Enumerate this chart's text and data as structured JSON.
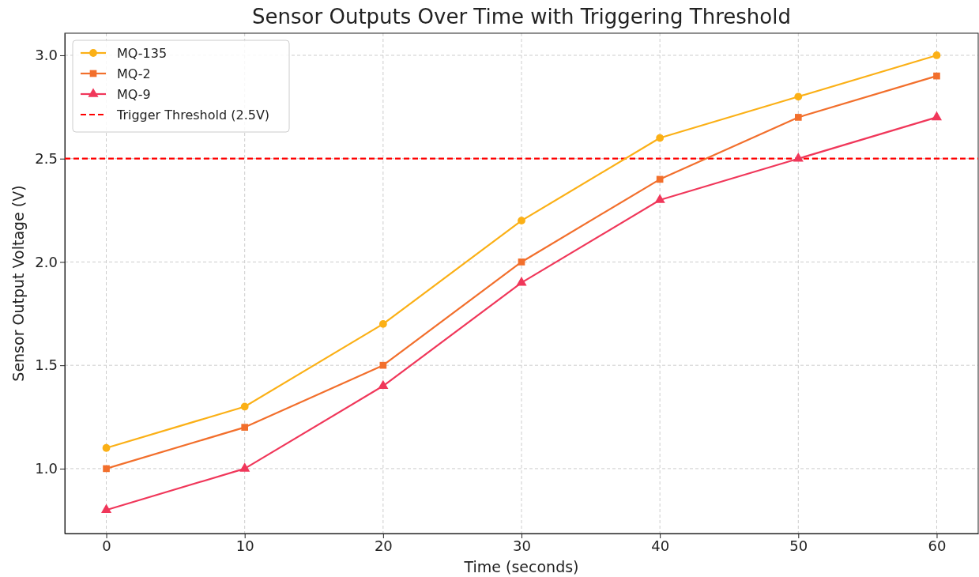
{
  "chart_data": {
    "type": "line",
    "title": "Sensor Outputs Over Time with Triggering Threshold",
    "xlabel": "Time (seconds)",
    "ylabel": "Sensor Output Voltage (V)",
    "x": [
      0,
      10,
      20,
      30,
      40,
      50,
      60
    ],
    "series": [
      {
        "name": "MQ-135",
        "color": "#fbb016",
        "marker": "circle",
        "values": [
          1.1,
          1.3,
          1.7,
          2.2,
          2.6,
          2.8,
          3.0
        ]
      },
      {
        "name": "MQ-2",
        "color": "#f26f2c",
        "marker": "square",
        "values": [
          1.0,
          1.2,
          1.5,
          2.0,
          2.4,
          2.7,
          2.9
        ]
      },
      {
        "name": "MQ-9",
        "color": "#f0375a",
        "marker": "triangle",
        "values": [
          0.8,
          1.0,
          1.4,
          1.9,
          2.3,
          2.5,
          2.7
        ]
      }
    ],
    "ref_lines": [
      {
        "axis": "y",
        "value": 2.5,
        "label": "Trigger Threshold (2.5V)",
        "color": "#ff0000",
        "line_style": "dashed"
      }
    ],
    "xlim": [
      -3,
      63
    ],
    "xticks": [
      0,
      10,
      20,
      30,
      40,
      50,
      60
    ],
    "ylim": [
      0.686,
      3.107
    ],
    "yticks": [
      {
        "value": 1,
        "label": "1.0"
      },
      {
        "value": 1.5,
        "label": "1.5"
      },
      {
        "value": 2,
        "label": "2.0"
      },
      {
        "value": 2.5,
        "label": "2.5"
      },
      {
        "value": 3,
        "label": "3.0"
      }
    ],
    "grid": true,
    "legend": "top left",
    "line_style": "solid"
  }
}
